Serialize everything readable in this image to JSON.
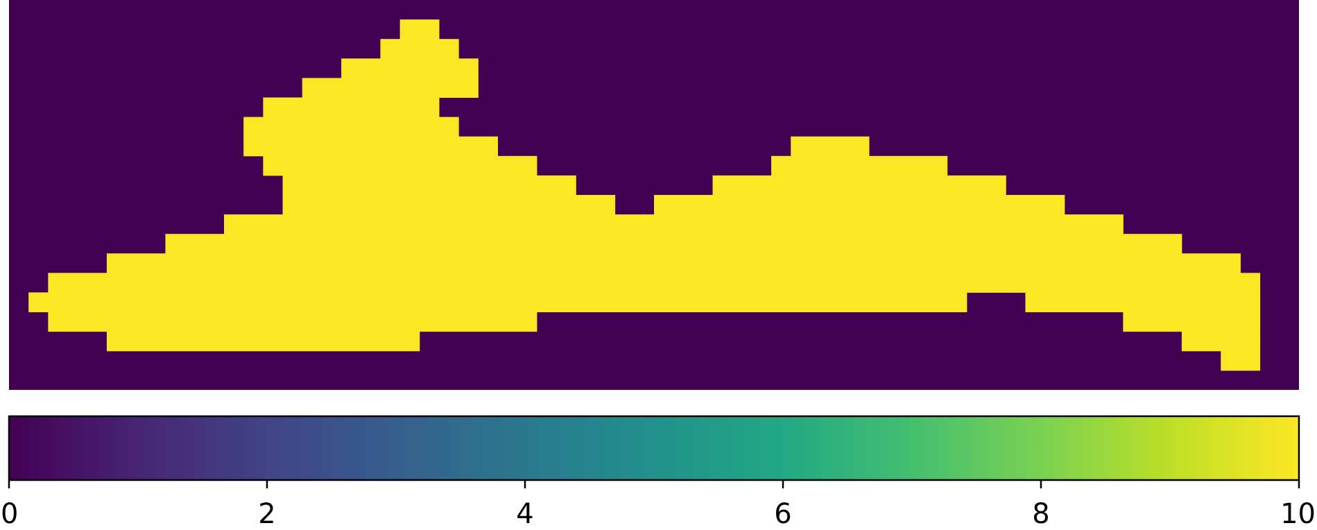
{
  "chart_data": {
    "type": "heatmap",
    "colormap": "viridis",
    "background_color": "#440154",
    "fill_color": "#fde725",
    "grid": false,
    "grid_shape": {
      "rows": 20,
      "cols": 66
    },
    "value_range": [
      0,
      10
    ],
    "filled_value": 10,
    "empty_value": 0,
    "filled_runs": [
      {
        "row": 1,
        "segments": [
          [
            20,
            21
          ]
        ]
      },
      {
        "row": 2,
        "segments": [
          [
            19,
            22
          ]
        ]
      },
      {
        "row": 3,
        "segments": [
          [
            17,
            23
          ]
        ]
      },
      {
        "row": 4,
        "segments": [
          [
            15,
            23
          ]
        ]
      },
      {
        "row": 5,
        "segments": [
          [
            13,
            21
          ]
        ]
      },
      {
        "row": 6,
        "segments": [
          [
            12,
            22
          ]
        ]
      },
      {
        "row": 7,
        "segments": [
          [
            12,
            24
          ],
          [
            40,
            43
          ]
        ]
      },
      {
        "row": 8,
        "segments": [
          [
            13,
            26
          ],
          [
            39,
            47
          ]
        ]
      },
      {
        "row": 9,
        "segments": [
          [
            14,
            28
          ],
          [
            36,
            50
          ]
        ]
      },
      {
        "row": 10,
        "segments": [
          [
            14,
            30
          ],
          [
            33,
            53
          ]
        ]
      },
      {
        "row": 11,
        "segments": [
          [
            11,
            56
          ]
        ]
      },
      {
        "row": 12,
        "segments": [
          [
            8,
            59
          ]
        ]
      },
      {
        "row": 13,
        "segments": [
          [
            5,
            62
          ]
        ]
      },
      {
        "row": 14,
        "segments": [
          [
            2,
            63
          ]
        ]
      },
      {
        "row": 15,
        "segments": [
          [
            1,
            48
          ],
          [
            52,
            63
          ]
        ]
      },
      {
        "row": 16,
        "segments": [
          [
            2,
            26
          ],
          [
            57,
            63
          ]
        ]
      },
      {
        "row": 17,
        "segments": [
          [
            5,
            20
          ],
          [
            60,
            63
          ]
        ]
      },
      {
        "row": 18,
        "segments": [
          [
            62,
            63
          ]
        ]
      }
    ],
    "colorbar": {
      "orientation": "horizontal",
      "ticks": [
        0,
        2,
        4,
        6,
        8,
        10
      ],
      "tick_labels": [
        "0",
        "2",
        "4",
        "6",
        "8",
        "10"
      ]
    }
  }
}
